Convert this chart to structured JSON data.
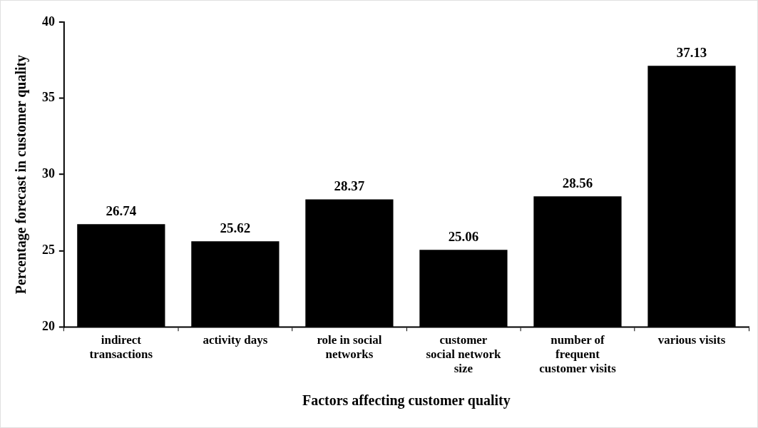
{
  "chart_data": {
    "type": "bar",
    "categories": [
      "indirect\ntransactions",
      "activity days",
      "role in social\nnetworks",
      "customer\nsocial network\nsize",
      "number of\nfrequent\ncustomer visits",
      "various visits"
    ],
    "values": [
      26.74,
      25.62,
      28.37,
      25.06,
      28.56,
      37.13
    ],
    "color": "#000000",
    "xlabel": "Factors affecting customer quality",
    "ylabel": "Percentage forecast in customer quality",
    "ylim": [
      20,
      40
    ],
    "yticks": [
      20,
      25,
      30,
      35,
      40
    ],
    "data_labels": true,
    "grid": false,
    "legend": false
  }
}
